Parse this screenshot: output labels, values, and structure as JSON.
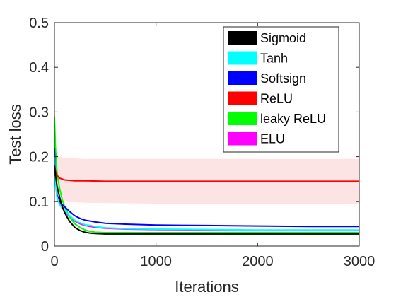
{
  "chart_data": {
    "type": "line",
    "title": "",
    "xlabel": "Iterations",
    "ylabel": "Test loss",
    "xlim": [
      0,
      3000
    ],
    "ylim": [
      0,
      0.5
    ],
    "xticks": [
      0,
      1000,
      2000,
      3000
    ],
    "yticks": [
      0,
      0.1,
      0.2,
      0.3,
      0.4,
      0.5
    ],
    "xtick_labels": [
      "0",
      "1000",
      "2000",
      "3000"
    ],
    "ytick_labels": [
      "0",
      "0.1",
      "0.2",
      "0.3",
      "0.4",
      "0.5"
    ],
    "grid": false,
    "legend_position": "top-right",
    "series": [
      {
        "name": "Sigmoid",
        "color": "#000000",
        "x": [
          0,
          10,
          25,
          50,
          75,
          100,
          150,
          200,
          250,
          300,
          350,
          400,
          500,
          700,
          1000,
          1500,
          2000,
          2500,
          3000
        ],
        "y": [
          0.18,
          0.16,
          0.135,
          0.11,
          0.09,
          0.075,
          0.055,
          0.042,
          0.035,
          0.031,
          0.029,
          0.028,
          0.027,
          0.027,
          0.027,
          0.027,
          0.027,
          0.027,
          0.027
        ]
      },
      {
        "name": "Tanh",
        "color": "#00ffff",
        "x": [
          0,
          10,
          25,
          50,
          75,
          100,
          150,
          200,
          250,
          300,
          400,
          500,
          700,
          1000,
          1500,
          2000,
          2500,
          3000
        ],
        "y": [
          0.2,
          0.14,
          0.11,
          0.093,
          0.085,
          0.08,
          0.068,
          0.058,
          0.052,
          0.048,
          0.044,
          0.041,
          0.039,
          0.038,
          0.037,
          0.036,
          0.036,
          0.036
        ]
      },
      {
        "name": "Softsign",
        "color": "#0000ff",
        "x": [
          0,
          10,
          25,
          50,
          75,
          100,
          150,
          200,
          250,
          300,
          400,
          500,
          700,
          1000,
          1500,
          2000,
          2500,
          3000
        ],
        "y": [
          0.22,
          0.15,
          0.115,
          0.1,
          0.093,
          0.088,
          0.077,
          0.068,
          0.062,
          0.058,
          0.054,
          0.051,
          0.049,
          0.047,
          0.046,
          0.045,
          0.044,
          0.044
        ]
      },
      {
        "name": "ReLU",
        "color": "#ff0000",
        "band_color": "#fce4e4",
        "x": [
          0,
          10,
          25,
          50,
          75,
          100,
          150,
          200,
          300,
          500,
          1000,
          1500,
          2000,
          2500,
          3000
        ],
        "y": [
          0.19,
          0.168,
          0.158,
          0.152,
          0.15,
          0.148,
          0.147,
          0.146,
          0.146,
          0.145,
          0.145,
          0.145,
          0.145,
          0.145,
          0.145
        ],
        "upper": [
          0.22,
          0.21,
          0.205,
          0.2,
          0.198,
          0.197,
          0.196,
          0.196,
          0.195,
          0.195,
          0.195,
          0.195,
          0.195,
          0.195,
          0.195
        ],
        "lower": [
          0.16,
          0.135,
          0.12,
          0.11,
          0.105,
          0.102,
          0.099,
          0.098,
          0.097,
          0.096,
          0.095,
          0.095,
          0.095,
          0.095,
          0.095
        ]
      },
      {
        "name": "leaky ReLU",
        "color": "#00ff00",
        "x": [
          0,
          10,
          25,
          50,
          75,
          100,
          150,
          200,
          250,
          300,
          350,
          400,
          500,
          700,
          1000,
          1500,
          2000,
          2500,
          3000
        ],
        "y": [
          0.29,
          0.22,
          0.165,
          0.13,
          0.105,
          0.088,
          0.065,
          0.05,
          0.042,
          0.036,
          0.033,
          0.031,
          0.03,
          0.03,
          0.03,
          0.03,
          0.03,
          0.03,
          0.03
        ]
      },
      {
        "name": "ELU",
        "color": "#ff00ff",
        "x": [
          0,
          10,
          25,
          50,
          75,
          100,
          150,
          200,
          250,
          300,
          400,
          500,
          700,
          1000,
          1500,
          2000,
          2500,
          3000
        ],
        "y": [
          0.24,
          0.145,
          0.11,
          0.095,
          0.085,
          0.078,
          0.065,
          0.056,
          0.05,
          0.046,
          0.042,
          0.04,
          0.038,
          0.037,
          0.036,
          0.035,
          0.035,
          0.035
        ]
      }
    ]
  }
}
